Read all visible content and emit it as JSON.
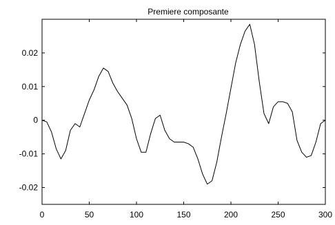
{
  "chart_data": {
    "type": "line",
    "title": "Premiere composante",
    "xlabel": "",
    "ylabel": "",
    "xlim": [
      0,
      300
    ],
    "ylim": [
      -0.025,
      0.03
    ],
    "grid": false,
    "legend": "none",
    "x_ticks": [
      0,
      50,
      100,
      150,
      200,
      250,
      300
    ],
    "x_tick_labels": [
      "0",
      "50",
      "100",
      "150",
      "200",
      "250",
      "300"
    ],
    "y_ticks": [
      -0.02,
      -0.01,
      0,
      0.01,
      0.02
    ],
    "y_tick_labels": [
      "-0.02",
      "-0.01",
      "0",
      "0.01",
      "0.02"
    ],
    "series": [
      {
        "color": "#000000",
        "x": [
          0,
          5,
          10,
          15,
          20,
          25,
          30,
          35,
          40,
          45,
          50,
          55,
          60,
          65,
          70,
          75,
          80,
          85,
          90,
          95,
          100,
          105,
          110,
          115,
          120,
          125,
          130,
          135,
          140,
          145,
          150,
          155,
          160,
          165,
          170,
          175,
          180,
          185,
          190,
          195,
          200,
          205,
          210,
          215,
          220,
          225,
          230,
          235,
          240,
          245,
          250,
          255,
          260,
          265,
          270,
          275,
          280,
          285,
          290,
          295,
          300
        ],
        "y": [
          0,
          -0.0005,
          -0.0035,
          -0.0085,
          -0.0115,
          -0.009,
          -0.003,
          -0.001,
          -0.002,
          0.002,
          0.006,
          0.009,
          0.013,
          0.0155,
          0.0145,
          0.011,
          0.0085,
          0.0065,
          0.0045,
          0.0005,
          -0.0055,
          -0.0095,
          -0.0095,
          -0.004,
          0.0005,
          0.0015,
          -0.003,
          -0.0055,
          -0.0065,
          -0.0065,
          -0.0065,
          -0.007,
          -0.008,
          -0.0115,
          -0.016,
          -0.019,
          -0.018,
          -0.0125,
          -0.005,
          0.002,
          0.0095,
          0.017,
          0.0225,
          0.0265,
          0.0285,
          0.0225,
          0.0115,
          0.002,
          -0.001,
          0.004,
          0.0055,
          0.0055,
          0.005,
          0.0025,
          -0.006,
          -0.0095,
          -0.011,
          -0.0105,
          -0.0065,
          -0.001,
          0
        ]
      }
    ]
  }
}
